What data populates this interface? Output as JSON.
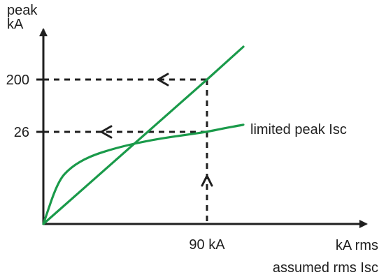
{
  "chart_data": {
    "type": "line",
    "ylabel_line1": "peak",
    "ylabel_line2": "kA",
    "xlabel_line1": "kA rms",
    "xlabel_line2": "assumed rms Isc",
    "y_ticks": [
      {
        "value": 200,
        "label": "200"
      },
      {
        "value": 26,
        "label": "26"
      }
    ],
    "x_ticks": [
      {
        "value": 90,
        "label": "90 kA"
      }
    ],
    "series": [
      {
        "id": "prospective",
        "x": [
          0,
          90,
          123
        ],
        "y": [
          0,
          200,
          273
        ]
      },
      {
        "id": "limited",
        "name": "limited peak Isc",
        "x": [
          0,
          8,
          15,
          25,
          40,
          60,
          80,
          90,
          105,
          123
        ],
        "y": [
          0,
          12,
          16,
          19,
          21.5,
          23.8,
          25.3,
          26,
          27,
          28
        ]
      }
    ],
    "reference_lines": [
      {
        "x": 90,
        "y": 200
      },
      {
        "x": 90,
        "y": 26
      }
    ],
    "colors": {
      "series": "#1a9a4a",
      "axis": "#1f1f1f"
    }
  }
}
